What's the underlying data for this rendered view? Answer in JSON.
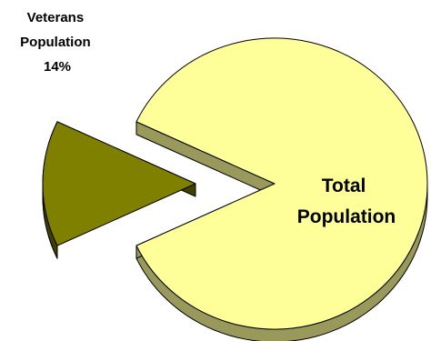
{
  "chart_data": {
    "type": "pie",
    "style": "3d-exploded",
    "slices": [
      {
        "label_lines": [
          "Total",
          "Population"
        ],
        "value": 86,
        "color": "#FFFF99",
        "side_color": "#99995C"
      },
      {
        "label_lines": [
          "Veterans",
          "Population",
          "14%"
        ],
        "value": 14,
        "color": "#808000",
        "side_color": "#404000",
        "exploded": true
      }
    ]
  }
}
